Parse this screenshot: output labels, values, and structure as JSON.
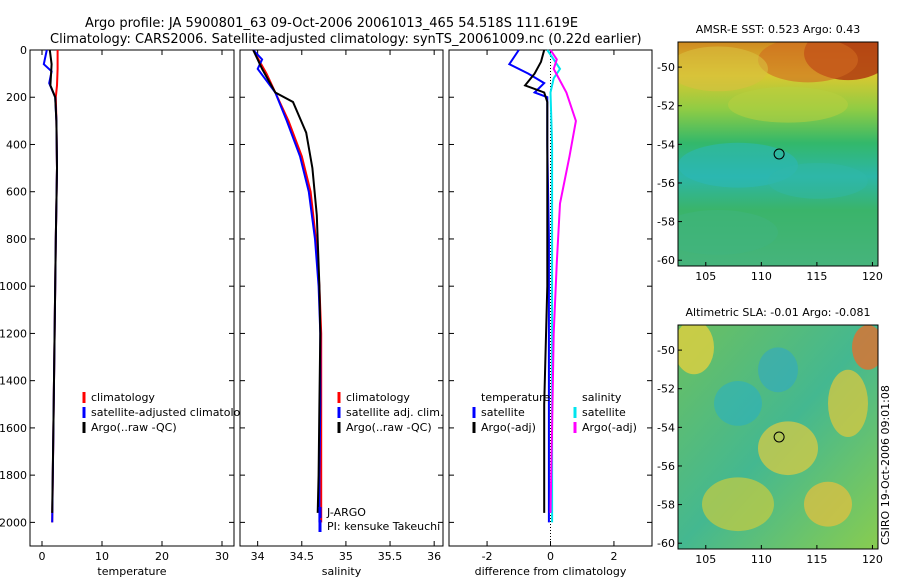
{
  "header": {
    "line1": "Argo profile: JA 5900801_63 09-Oct-2006 20061013_465 54.518S 111.619E",
    "line2": "Climatology: CARS2006. Satellite-adjusted climatology: synTS_20061009.nc (0.22d earlier)"
  },
  "colors": {
    "climatology": "#ff0000",
    "satellite": "#0000ff",
    "argo": "#000000",
    "salinity_satellite": "#00e5ee",
    "salinity_argo": "#ff00ff"
  },
  "chart_data": [
    {
      "type": "line",
      "id": "temperature",
      "xlabel": "temperature",
      "ylabel": "",
      "xlim": [
        -2,
        32
      ],
      "ylim": [
        2100,
        0
      ],
      "xticks": [
        0,
        10,
        20,
        30
      ],
      "yticks": [
        0,
        200,
        400,
        600,
        800,
        1000,
        1200,
        1400,
        1600,
        1800,
        2000
      ],
      "legend": [
        "climatology",
        "satellite-adjusted climatology",
        "Argo(..raw -QC)"
      ],
      "series": [
        {
          "name": "climatology",
          "color": "#ff0000",
          "points": [
            [
              2.6,
              0
            ],
            [
              2.6,
              80
            ],
            [
              2.5,
              150
            ],
            [
              2.3,
              200
            ],
            [
              2.4,
              300
            ],
            [
              2.5,
              500
            ],
            [
              2.3,
              800
            ],
            [
              2.1,
              1200
            ],
            [
              1.9,
              1600
            ],
            [
              1.7,
              2000
            ]
          ]
        },
        {
          "name": "satellite-adjusted climatology",
          "color": "#0000ff",
          "points": [
            [
              0.8,
              0
            ],
            [
              0.3,
              60
            ],
            [
              1.6,
              90
            ],
            [
              1.2,
              140
            ],
            [
              2.2,
              200
            ],
            [
              2.4,
              300
            ],
            [
              2.5,
              500
            ],
            [
              2.3,
              800
            ],
            [
              2.1,
              1200
            ],
            [
              1.9,
              1600
            ],
            [
              1.7,
              2000
            ]
          ]
        },
        {
          "name": "Argo(..raw -QC)",
          "color": "#000000",
          "points": [
            [
              1.3,
              0
            ],
            [
              1.6,
              60
            ],
            [
              1.4,
              150
            ],
            [
              2.2,
              200
            ],
            [
              2.4,
              300
            ],
            [
              2.5,
              500
            ],
            [
              2.3,
              800
            ],
            [
              2.1,
              1200
            ],
            [
              1.9,
              1600
            ],
            [
              1.7,
              1960
            ]
          ]
        }
      ]
    },
    {
      "type": "line",
      "id": "salinity",
      "xlabel": "salinity",
      "xlim": [
        33.8,
        36.1
      ],
      "ylim": [
        2100,
        0
      ],
      "xticks": [
        34,
        34.5,
        35,
        35.5,
        36
      ],
      "legend": [
        "climatology",
        "satellite adj. clim.",
        "Argo(..raw -QC)"
      ],
      "annotations": [
        "J-ARGO",
        "PI: kensuke Takeuchi"
      ],
      "series": [
        {
          "name": "climatology",
          "color": "#ff0000",
          "points": [
            [
              33.95,
              0
            ],
            [
              34.1,
              100
            ],
            [
              34.2,
              180
            ],
            [
              34.35,
              300
            ],
            [
              34.5,
              450
            ],
            [
              34.6,
              600
            ],
            [
              34.66,
              800
            ],
            [
              34.7,
              1000
            ],
            [
              34.72,
              1200
            ],
            [
              34.72,
              1500
            ],
            [
              34.72,
              1800
            ],
            [
              34.72,
              2000
            ]
          ]
        },
        {
          "name": "satellite adj. clim.",
          "color": "#0000ff",
          "points": [
            [
              33.95,
              0
            ],
            [
              34.05,
              40
            ],
            [
              34.0,
              80
            ],
            [
              34.1,
              130
            ],
            [
              34.2,
              180
            ],
            [
              34.33,
              300
            ],
            [
              34.48,
              450
            ],
            [
              34.58,
              600
            ],
            [
              34.65,
              800
            ],
            [
              34.69,
              1000
            ],
            [
              34.71,
              1200
            ],
            [
              34.71,
              1500
            ],
            [
              34.7,
              1800
            ],
            [
              34.7,
              2000
            ]
          ]
        },
        {
          "name": "Argo(..raw -QC)",
          "color": "#000000",
          "points": [
            [
              33.95,
              0
            ],
            [
              34.05,
              80
            ],
            [
              34.2,
              180
            ],
            [
              34.4,
              220
            ],
            [
              34.55,
              350
            ],
            [
              34.62,
              500
            ],
            [
              34.67,
              700
            ],
            [
              34.7,
              1000
            ],
            [
              34.71,
              1200
            ],
            [
              34.7,
              1500
            ],
            [
              34.69,
              1800
            ],
            [
              34.68,
              1960
            ]
          ]
        }
      ]
    },
    {
      "type": "line",
      "id": "difference",
      "xlabel": "difference from climatology",
      "xlim": [
        -3.2,
        3.2
      ],
      "ylim": [
        2100,
        0
      ],
      "xticks": [
        -2,
        0,
        2
      ],
      "legend_temperature": {
        "title": "temperature",
        "entries": [
          "satellite",
          "Argo(-adj)"
        ]
      },
      "legend_salinity": {
        "title": "salinity",
        "entries": [
          "satellite",
          "Argo(-adj)"
        ]
      },
      "series": [
        {
          "name": "temperature satellite",
          "color": "#0000ff",
          "points": [
            [
              -1.0,
              0
            ],
            [
              -1.3,
              60
            ],
            [
              -0.7,
              100
            ],
            [
              -0.2,
              140
            ],
            [
              -0.5,
              180
            ],
            [
              -0.1,
              200
            ],
            [
              -0.1,
              400
            ],
            [
              -0.05,
              800
            ],
            [
              -0.05,
              1400
            ],
            [
              -0.05,
              2000
            ]
          ]
        },
        {
          "name": "temperature Argo(-adj)",
          "color": "#000000",
          "points": [
            [
              -0.2,
              0
            ],
            [
              -0.3,
              50
            ],
            [
              -0.5,
              100
            ],
            [
              -0.8,
              150
            ],
            [
              -0.2,
              180
            ],
            [
              -0.1,
              220
            ],
            [
              -0.1,
              500
            ],
            [
              -0.1,
              1000
            ],
            [
              -0.2,
              1500
            ],
            [
              -0.2,
              1960
            ]
          ]
        },
        {
          "name": "salinity satellite",
          "color": "#00e5ee",
          "points": [
            [
              -0.1,
              0
            ],
            [
              0.1,
              40
            ],
            [
              0.3,
              80
            ],
            [
              0.1,
              120
            ],
            [
              0.0,
              180
            ],
            [
              0.05,
              400
            ],
            [
              0.05,
              1000
            ],
            [
              0.05,
              2000
            ]
          ]
        },
        {
          "name": "salinity Argo(-adj)",
          "color": "#ff00ff",
          "points": [
            [
              0.0,
              0
            ],
            [
              0.2,
              40
            ],
            [
              0.1,
              80
            ],
            [
              0.5,
              180
            ],
            [
              0.8,
              300
            ],
            [
              0.6,
              450
            ],
            [
              0.3,
              650
            ],
            [
              0.2,
              900
            ],
            [
              0.1,
              1200
            ],
            [
              0.05,
              1600
            ],
            [
              0.0,
              1960
            ]
          ]
        }
      ]
    },
    {
      "type": "heatmap",
      "id": "amsr-sst",
      "title": "AMSR-E SST: 0.523 Argo: 0.43",
      "xlim": [
        102.5,
        120.5
      ],
      "ylim": [
        -60.3,
        -48.7
      ],
      "xticks": [
        105,
        110,
        115,
        120
      ],
      "yticks": [
        -50,
        -52,
        -54,
        -56,
        -58,
        -60
      ],
      "marker": [
        111.6,
        -54.5
      ]
    },
    {
      "type": "heatmap",
      "id": "altimetric-sla",
      "title": "Altimetric SLA: -0.01 Argo: -0.081",
      "xlim": [
        102.5,
        120.5
      ],
      "ylim": [
        -60.3,
        -48.7
      ],
      "xticks": [
        105,
        110,
        115,
        120
      ],
      "yticks": [
        -50,
        -52,
        -54,
        -56,
        -58,
        -60
      ],
      "marker": [
        111.6,
        -54.5
      ]
    }
  ],
  "credit": "CSIRO 19-Oct-2006 09:01:08"
}
